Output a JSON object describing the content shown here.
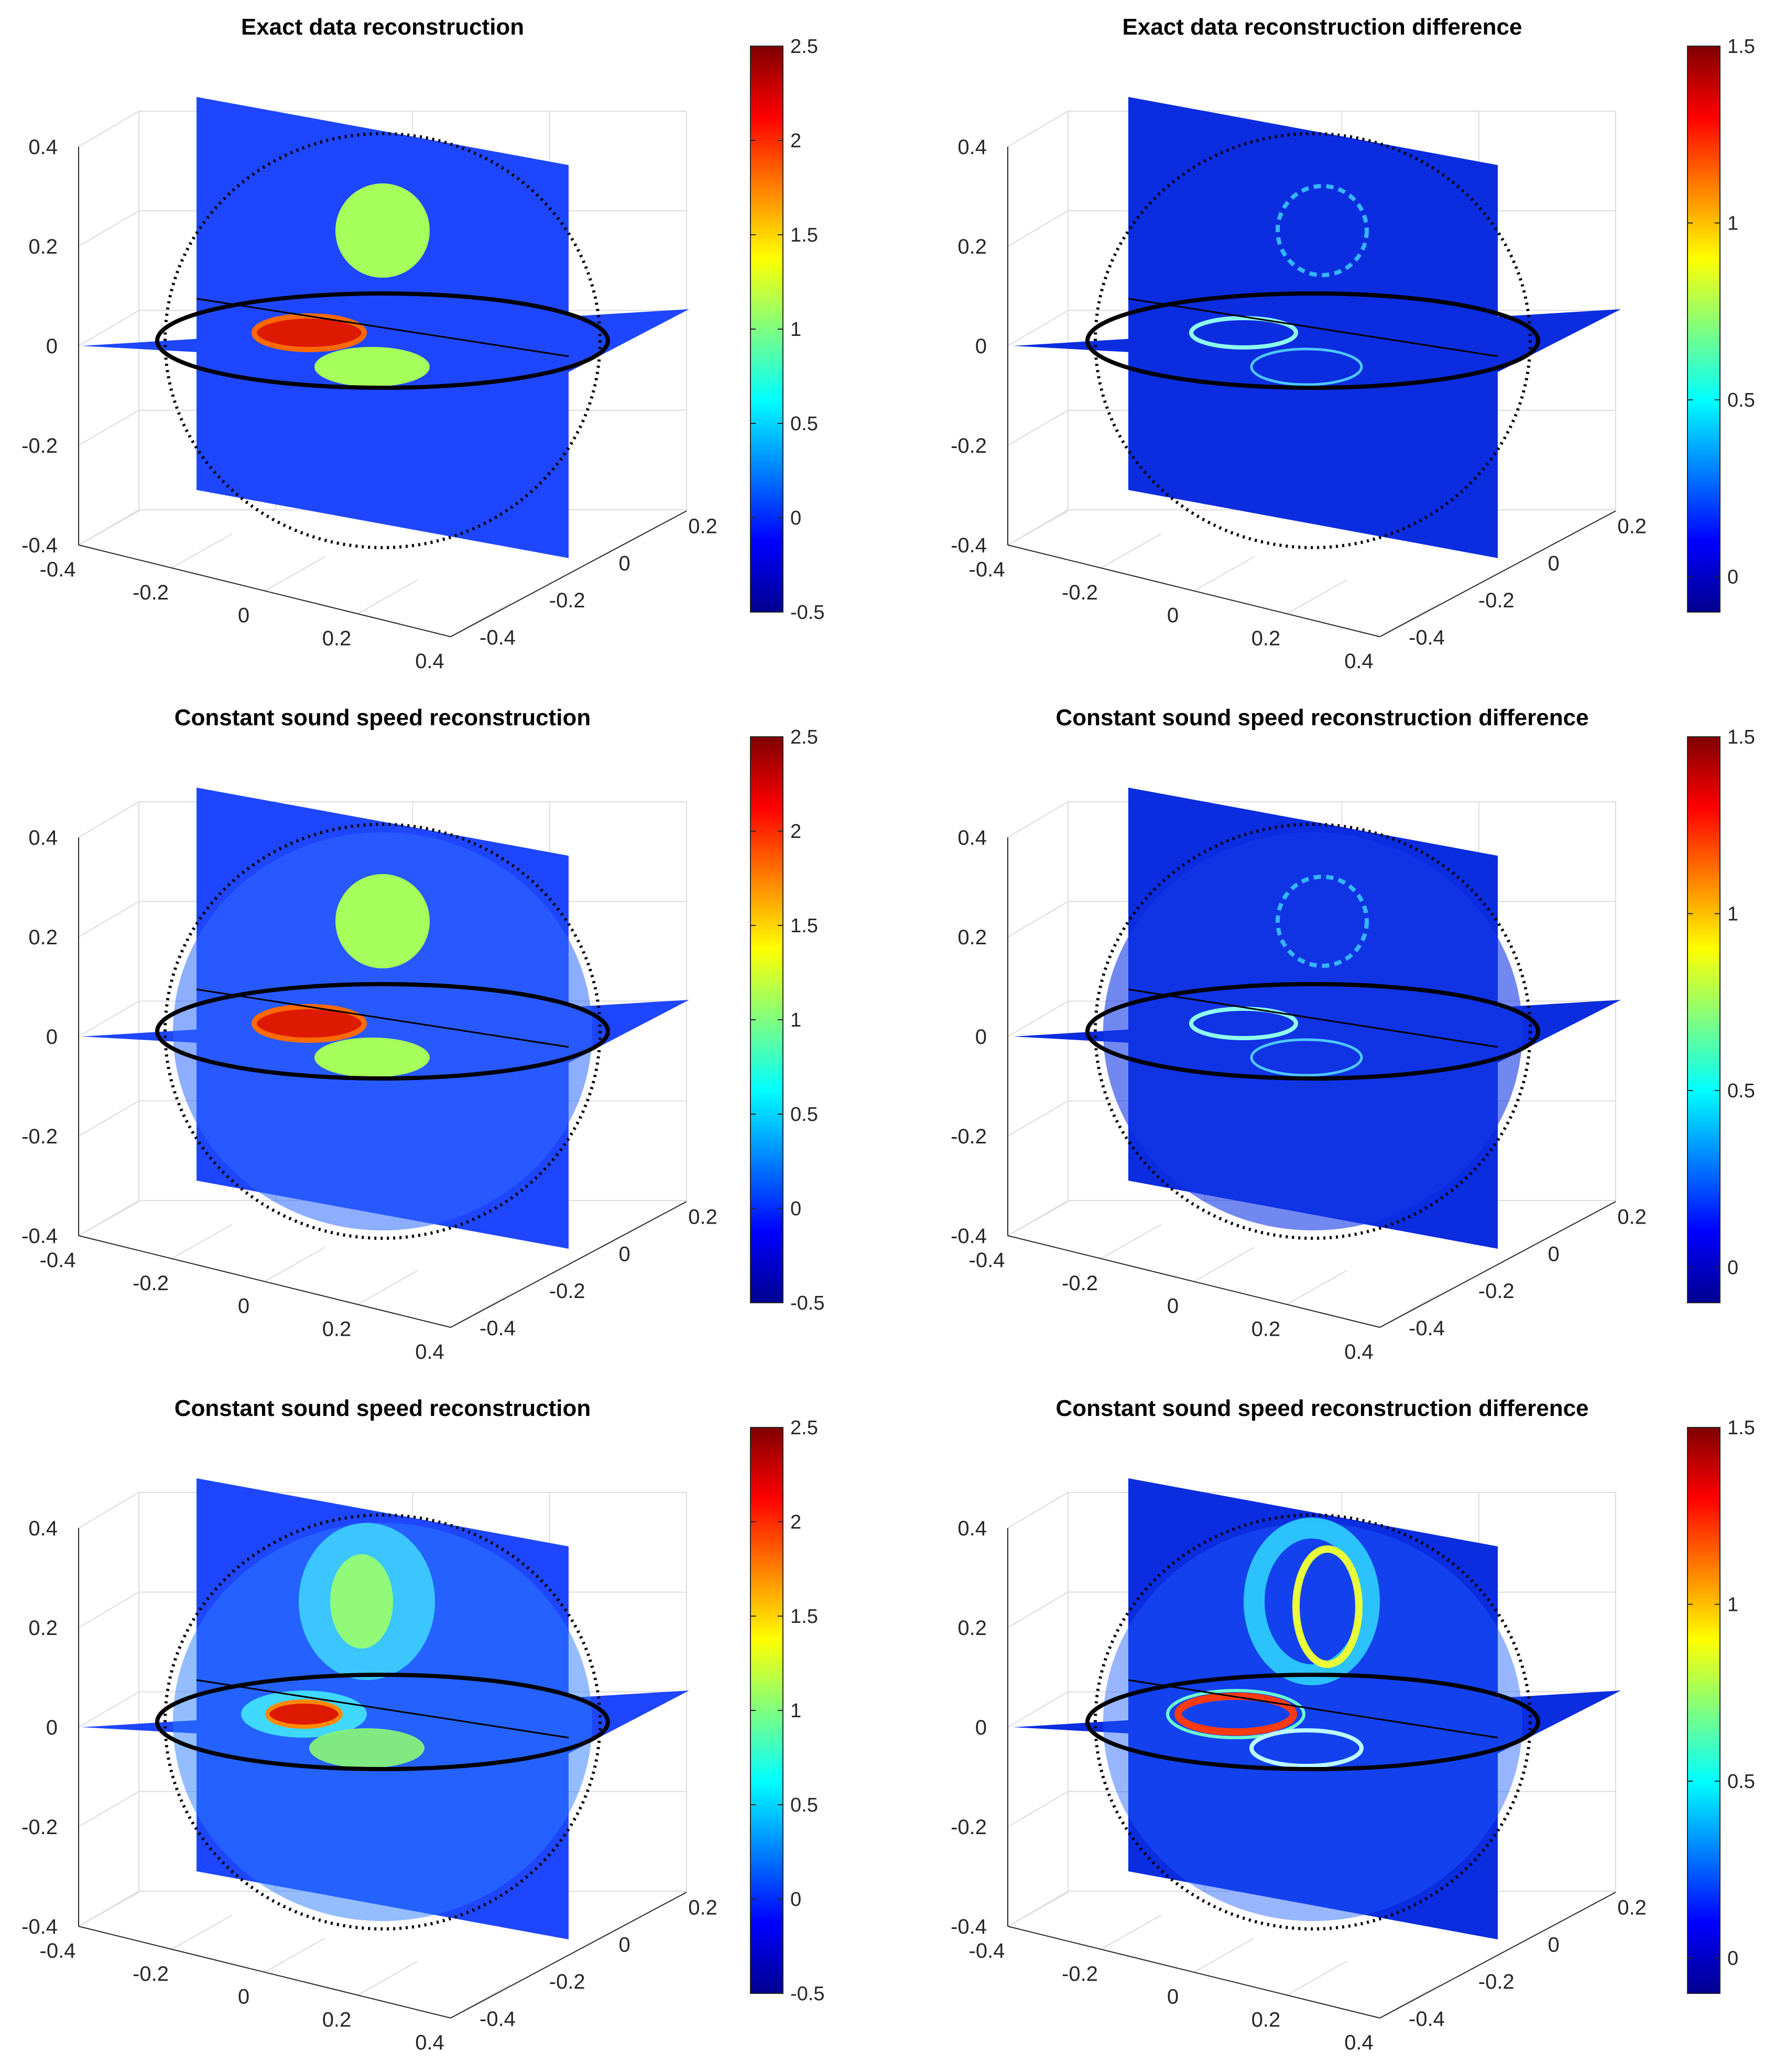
{
  "figure": {
    "panels": [
      {
        "id": "a",
        "title": "Exact data reconstruction",
        "cbar": {
          "ticks": [
            "2.5",
            "2",
            "1.5",
            "1",
            "0.5",
            "0",
            "-0.5"
          ],
          "min": -0.5,
          "max": 2.5
        }
      },
      {
        "id": "b",
        "title": "Exact data reconstruction difference",
        "cbar": {
          "ticks": [
            "1.5",
            "1",
            "0.5",
            "0"
          ],
          "min": -0.1,
          "max": 1.5
        }
      },
      {
        "id": "c",
        "title": "Constant sound speed reconstruction",
        "cbar": {
          "ticks": [
            "2.5",
            "2",
            "1.5",
            "1",
            "0.5",
            "0",
            "-0.5"
          ],
          "min": -0.5,
          "max": 2.5
        }
      },
      {
        "id": "d",
        "title": "Constant sound speed reconstruction difference",
        "cbar": {
          "ticks": [
            "1.5",
            "1",
            "0.5",
            "0"
          ],
          "min": -0.1,
          "max": 1.5
        }
      },
      {
        "id": "e",
        "title": "Constant sound speed reconstruction",
        "cbar": {
          "ticks": [
            "2.5",
            "2",
            "1.5",
            "1",
            "0.5",
            "0",
            "-0.5"
          ],
          "min": -0.5,
          "max": 2.5
        }
      },
      {
        "id": "f",
        "title": "Constant sound speed reconstruction difference",
        "cbar": {
          "ticks": [
            "1.5",
            "1",
            "0.5",
            "0"
          ],
          "min": -0.1,
          "max": 1.5
        }
      }
    ],
    "axes": {
      "z_ticks": [
        "0.4",
        "0.2",
        "0",
        "-0.2",
        "-0.4"
      ],
      "x_ticks": [
        "-0.4",
        "-0.2",
        "0",
        "0.2",
        "0.4"
      ],
      "y_ticks": [
        "-0.4",
        "-0.2",
        "0",
        "0.2"
      ]
    }
  },
  "chart_data": [
    {
      "type": "heatmap",
      "title": "Exact data reconstruction",
      "colormap": "jet",
      "clim": [
        -0.5,
        2.5
      ],
      "zlim": [
        -0.4,
        0.4
      ],
      "xlim": [
        -0.4,
        0.4
      ],
      "ylim": [
        -0.4,
        0.3
      ],
      "grid": true
    },
    {
      "type": "heatmap",
      "title": "Exact data reconstruction difference",
      "colormap": "jet",
      "clim": [
        -0.1,
        1.5
      ],
      "zlim": [
        -0.4,
        0.4
      ],
      "xlim": [
        -0.4,
        0.4
      ],
      "ylim": [
        -0.4,
        0.3
      ],
      "grid": true
    },
    {
      "type": "heatmap",
      "title": "Constant sound speed reconstruction",
      "colormap": "jet",
      "clim": [
        -0.5,
        2.5
      ],
      "zlim": [
        -0.4,
        0.4
      ],
      "xlim": [
        -0.4,
        0.4
      ],
      "ylim": [
        -0.4,
        0.3
      ],
      "grid": true
    },
    {
      "type": "heatmap",
      "title": "Constant sound speed reconstruction difference",
      "colormap": "jet",
      "clim": [
        -0.1,
        1.5
      ],
      "zlim": [
        -0.4,
        0.4
      ],
      "xlim": [
        -0.4,
        0.4
      ],
      "ylim": [
        -0.4,
        0.3
      ],
      "grid": true
    },
    {
      "type": "heatmap",
      "title": "Constant sound speed reconstruction",
      "colormap": "jet",
      "clim": [
        -0.5,
        2.5
      ],
      "zlim": [
        -0.4,
        0.4
      ],
      "xlim": [
        -0.4,
        0.4
      ],
      "ylim": [
        -0.4,
        0.3
      ],
      "grid": true
    },
    {
      "type": "heatmap",
      "title": "Constant sound speed reconstruction difference",
      "colormap": "jet",
      "clim": [
        -0.1,
        1.5
      ],
      "zlim": [
        -0.4,
        0.4
      ],
      "xlim": [
        -0.4,
        0.4
      ],
      "ylim": [
        -0.4,
        0.3
      ],
      "grid": true
    }
  ]
}
